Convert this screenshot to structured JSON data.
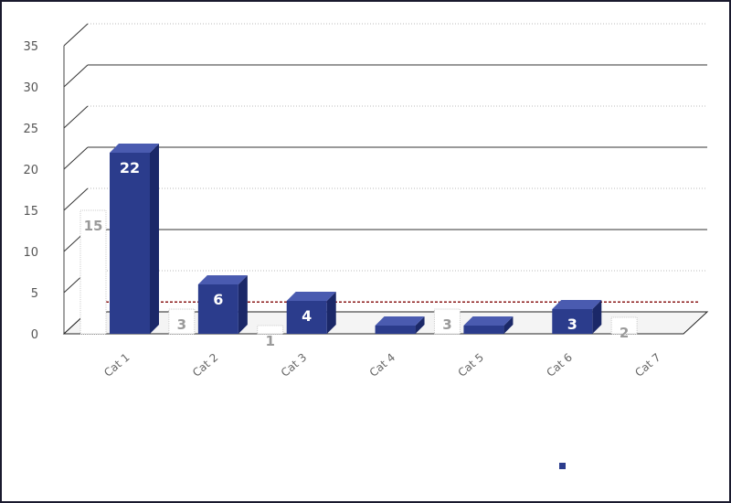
{
  "chart_data": {
    "type": "bar",
    "categories": [
      "Cat 1",
      "Cat 2",
      "Cat 3",
      "Cat 4",
      "Cat 5",
      "Cat 6",
      "Cat 7"
    ],
    "ylim": [
      0,
      35
    ],
    "yticks": [
      0,
      5,
      10,
      15,
      20,
      25,
      30,
      35
    ],
    "reference_line": 1.2,
    "grid": true,
    "legend_position": "bottom-right",
    "series": [
      {
        "name": "",
        "color": "#ffffff",
        "values": [
          15,
          3,
          1,
          0,
          3,
          0,
          2
        ]
      },
      {
        "name": "",
        "color": "#2b3c8c",
        "values": [
          22,
          6,
          4,
          1,
          1,
          3,
          0
        ]
      }
    ]
  },
  "colors": {
    "bar_front": "#2b3c8c",
    "bar_side": "#1b2868",
    "bar_top": "#4a5bb0",
    "reference_line": "#8b1a1a",
    "frame": "#1a1a2e"
  }
}
